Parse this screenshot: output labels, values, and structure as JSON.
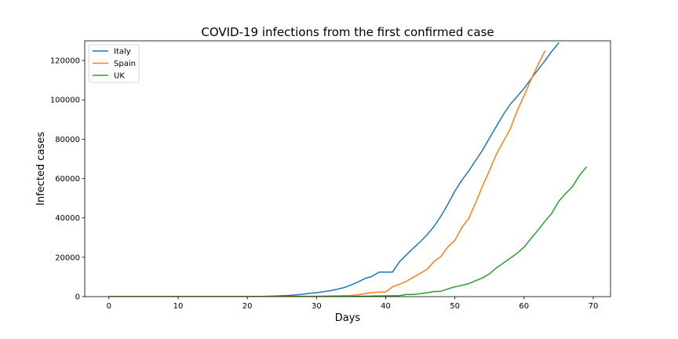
{
  "chart_data": {
    "type": "line",
    "title": "COVID-19 infections from the first confirmed case",
    "xlabel": "Days",
    "ylabel": "Infected cases",
    "xlim": [
      -3.5,
      72.5
    ],
    "ylim": [
      0,
      130000
    ],
    "grid": false,
    "legend_position": "top-left",
    "xticks": [
      0,
      10,
      20,
      30,
      40,
      50,
      60,
      70
    ],
    "yticks": [
      0,
      20000,
      40000,
      60000,
      80000,
      100000,
      120000
    ],
    "series": [
      {
        "name": "Italy",
        "color": "#1f77b4",
        "x": [
          0,
          5,
          10,
          15,
          20,
          22,
          24,
          26,
          28,
          29,
          30,
          31,
          32,
          33,
          34,
          35,
          36,
          37,
          38,
          39,
          40,
          41,
          42,
          43,
          44,
          45,
          46,
          47,
          48,
          49,
          50,
          51,
          52,
          53,
          54,
          55,
          56,
          57,
          58,
          59,
          60,
          61,
          62,
          63,
          64,
          65
        ],
        "y": [
          0,
          0,
          0,
          0,
          0,
          100,
          300,
          600,
          1200,
          1700,
          2000,
          2500,
          3000,
          3800,
          4600,
          5900,
          7400,
          9200,
          10200,
          12400,
          12500,
          12500,
          17700,
          21200,
          24700,
          27900,
          31500,
          35700,
          41000,
          47000,
          53600,
          59100,
          63900,
          69200,
          74400,
          80500,
          86500,
          92500,
          97700,
          101700,
          105800,
          110600,
          115200,
          119800,
          124600,
          128900
        ]
      },
      {
        "name": "Spain",
        "color": "#ff7f0e",
        "x": [
          0,
          10,
          20,
          30,
          33,
          35,
          36,
          37,
          38,
          39,
          40,
          41,
          42,
          43,
          44,
          45,
          46,
          47,
          48,
          49,
          50,
          51,
          52,
          53,
          54,
          55,
          56,
          57,
          58,
          59,
          60,
          61,
          62,
          63
        ],
        "y": [
          0,
          0,
          0,
          200,
          400,
          600,
          900,
          1500,
          2100,
          2300,
          2400,
          5000,
          6300,
          7800,
          9900,
          11800,
          13900,
          17900,
          20400,
          25300,
          28600,
          35100,
          39700,
          47600,
          56200,
          64000,
          72300,
          78800,
          85200,
          94400,
          102100,
          110200,
          117700,
          124700
        ]
      },
      {
        "name": "UK",
        "color": "#2ca02c",
        "x": [
          0,
          10,
          20,
          30,
          35,
          40,
          42,
          43,
          44,
          45,
          46,
          47,
          48,
          49,
          50,
          51,
          52,
          53,
          54,
          55,
          56,
          57,
          58,
          59,
          60,
          61,
          62,
          63,
          64,
          65,
          66,
          67,
          68,
          69
        ],
        "y": [
          0,
          0,
          0,
          0,
          100,
          400,
          500,
          1100,
          1100,
          1500,
          2000,
          2600,
          2700,
          3900,
          5000,
          5700,
          6600,
          8100,
          9500,
          11600,
          14600,
          17100,
          19500,
          22100,
          25100,
          29500,
          33700,
          38200,
          42300,
          48400,
          52300,
          55900,
          61500,
          65800
        ]
      }
    ]
  }
}
